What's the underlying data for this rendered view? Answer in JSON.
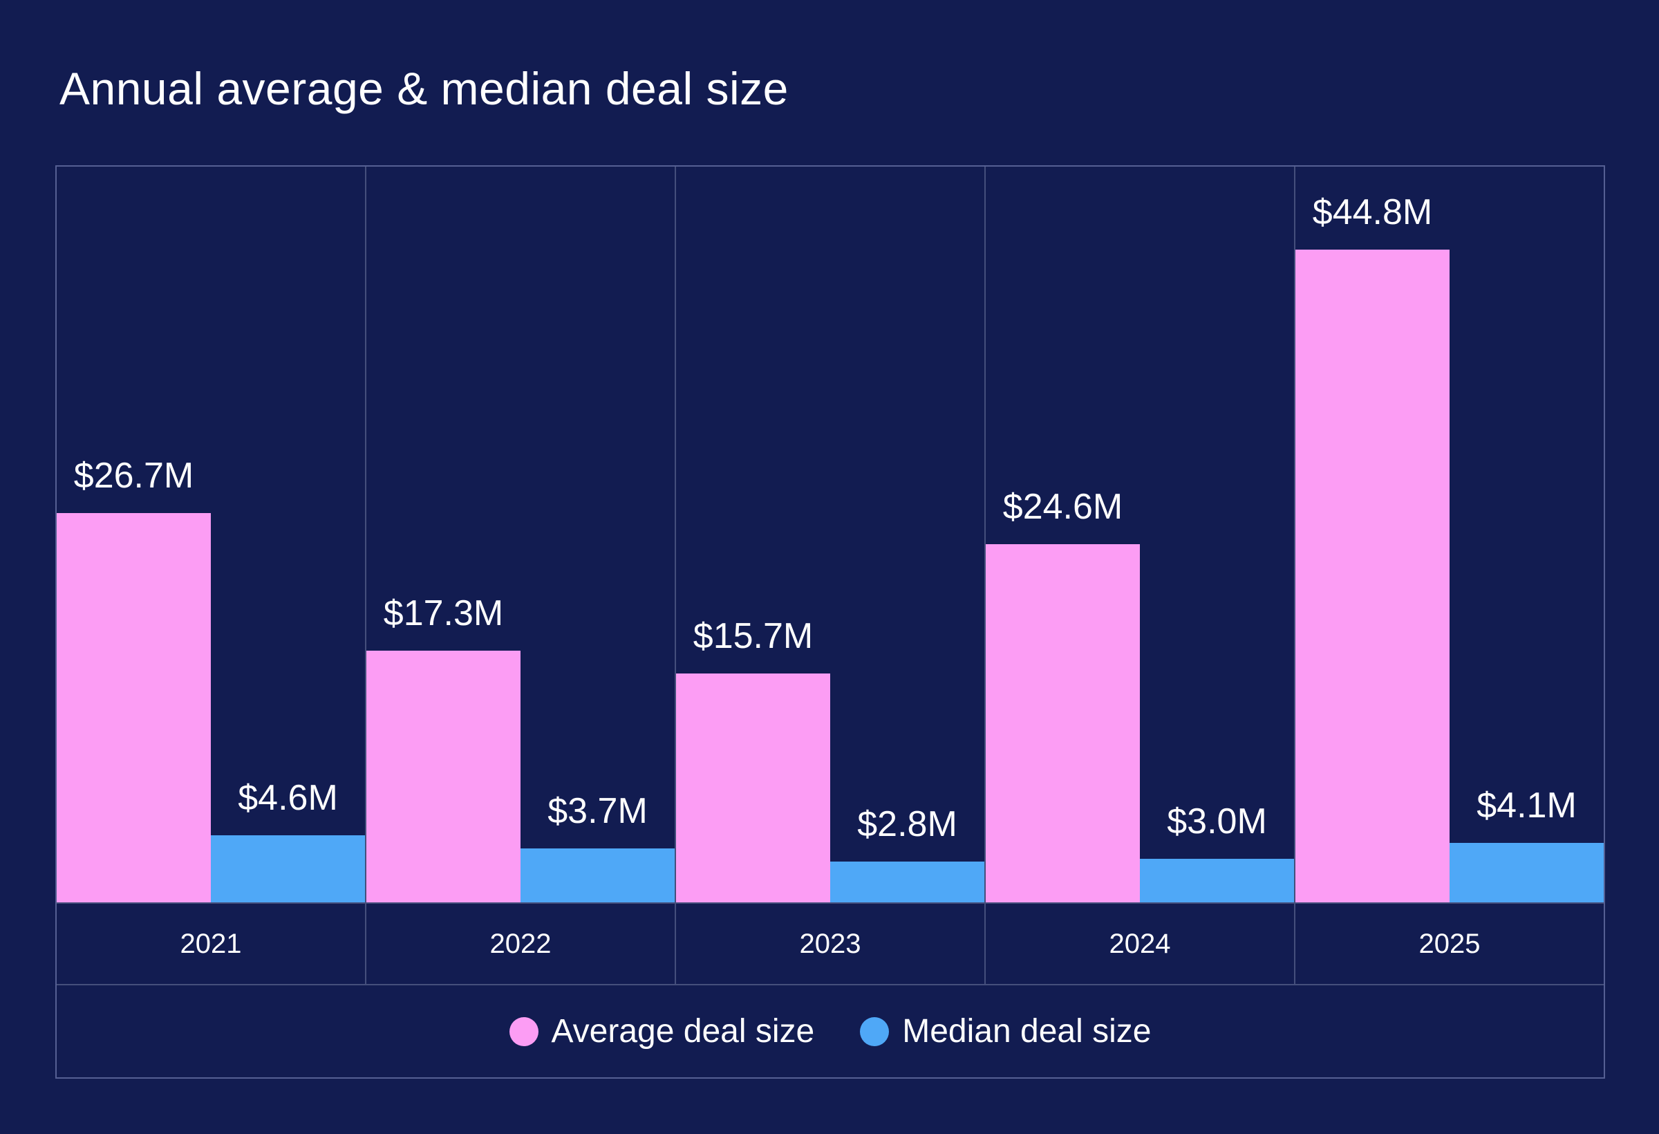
{
  "title": "Annual average & median deal size",
  "colors": {
    "background": "#121C51",
    "frame_border": "#555F93",
    "grid_line": "#454F7C",
    "average_series": "#FC9DF4",
    "median_series": "#4FA8F7",
    "text": "#FFFFFF"
  },
  "legend": {
    "items": [
      {
        "label": "Average deal size",
        "color": "#FC9DF4"
      },
      {
        "label": "Median deal size",
        "color": "#4FA8F7"
      }
    ]
  },
  "chart_data": {
    "type": "bar",
    "title": "Annual average & median deal size",
    "categories": [
      "2021",
      "2022",
      "2023",
      "2024",
      "2025"
    ],
    "series": [
      {
        "name": "Average deal size",
        "color": "#FC9DF4",
        "values": [
          26.7,
          17.3,
          15.7,
          24.6,
          44.8
        ],
        "labels": [
          "$26.7M",
          "$17.3M",
          "$15.7M",
          "$24.6M",
          "$44.8M"
        ]
      },
      {
        "name": "Median deal size",
        "color": "#4FA8F7",
        "values": [
          4.6,
          3.7,
          2.8,
          3.0,
          4.1
        ],
        "labels": [
          "$4.6M",
          "$3.7M",
          "$2.8M",
          "$3.0M",
          "$4.1M"
        ]
      }
    ],
    "xlabel": "",
    "ylabel": "",
    "ylim": [
      0,
      50.5
    ],
    "grid": "vertical-column-dividers",
    "legend_position": "bottom",
    "value_labels_shown": true
  }
}
